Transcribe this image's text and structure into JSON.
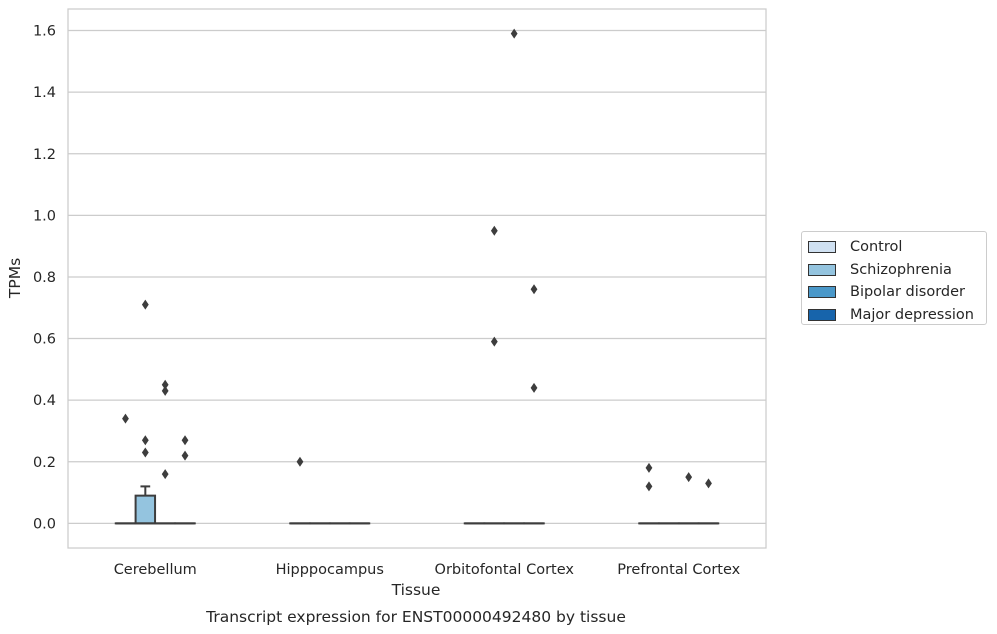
{
  "chart_data": {
    "type": "box",
    "caption": "Transcript expression for ENST00000492480 by tissue",
    "xlabel": "Tissue",
    "ylabel": "TPMs",
    "ylim": [
      -0.08,
      1.67
    ],
    "yticks": [
      "0.0",
      "0.2",
      "0.4",
      "0.6",
      "0.8",
      "1.0",
      "1.2",
      "1.4",
      "1.6"
    ],
    "ytick_values": [
      0.0,
      0.2,
      0.4,
      0.6,
      0.8,
      1.0,
      1.2,
      1.4,
      1.6
    ],
    "grid": true,
    "legend_position": "right",
    "categories": [
      "Cerebellum",
      "Hipppocampus",
      "Orbitofontal Cortex",
      "Prefrontal Cortex"
    ],
    "series": [
      {
        "name": "Control",
        "color": "#d0e1f2",
        "boxes": [
          {
            "q1": 0,
            "median": 0,
            "q3": 0,
            "whisker_low": 0,
            "whisker_high": 0,
            "outliers": [
              0.34
            ]
          },
          {
            "q1": 0,
            "median": 0,
            "q3": 0,
            "whisker_low": 0,
            "whisker_high": 0,
            "outliers": [
              0.2
            ]
          },
          {
            "q1": 0,
            "median": 0,
            "q3": 0,
            "whisker_low": 0,
            "whisker_high": 0,
            "outliers": []
          },
          {
            "q1": 0,
            "median": 0,
            "q3": 0,
            "whisker_low": 0,
            "whisker_high": 0,
            "outliers": [
              0.18,
              0.12
            ]
          }
        ]
      },
      {
        "name": "Schizophrenia",
        "color": "#94c4df",
        "boxes": [
          {
            "q1": 0,
            "median": 0,
            "q3": 0.09,
            "whisker_low": 0,
            "whisker_high": 0.12,
            "outliers": [
              0.71,
              0.27,
              0.23
            ]
          },
          {
            "q1": 0,
            "median": 0,
            "q3": 0,
            "whisker_low": 0,
            "whisker_high": 0,
            "outliers": []
          },
          {
            "q1": 0,
            "median": 0,
            "q3": 0,
            "whisker_low": 0,
            "whisker_high": 0,
            "outliers": [
              0.95,
              0.59
            ]
          },
          {
            "q1": 0,
            "median": 0,
            "q3": 0,
            "whisker_low": 0,
            "whisker_high": 0,
            "outliers": []
          }
        ]
      },
      {
        "name": "Bipolar disorder",
        "color": "#4a98c9",
        "boxes": [
          {
            "q1": 0,
            "median": 0,
            "q3": 0,
            "whisker_low": 0,
            "whisker_high": 0,
            "outliers": [
              0.45,
              0.43,
              0.16
            ]
          },
          {
            "q1": 0,
            "median": 0,
            "q3": 0,
            "whisker_low": 0,
            "whisker_high": 0,
            "outliers": []
          },
          {
            "q1": 0,
            "median": 0,
            "q3": 0,
            "whisker_low": 0,
            "whisker_high": 0,
            "outliers": [
              1.59
            ]
          },
          {
            "q1": 0,
            "median": 0,
            "q3": 0,
            "whisker_low": 0,
            "whisker_high": 0,
            "outliers": [
              0.15
            ]
          }
        ]
      },
      {
        "name": "Major depression",
        "color": "#1764ab",
        "boxes": [
          {
            "q1": 0,
            "median": 0,
            "q3": 0,
            "whisker_low": 0,
            "whisker_high": 0,
            "outliers": [
              0.27,
              0.22
            ]
          },
          {
            "q1": 0,
            "median": 0,
            "q3": 0,
            "whisker_low": 0,
            "whisker_high": 0,
            "outliers": []
          },
          {
            "q1": 0,
            "median": 0,
            "q3": 0,
            "whisker_low": 0,
            "whisker_high": 0,
            "outliers": [
              0.76,
              0.44
            ]
          },
          {
            "q1": 0,
            "median": 0,
            "q3": 0,
            "whisker_low": 0,
            "whisker_high": 0,
            "outliers": [
              0.13
            ]
          }
        ]
      }
    ]
  }
}
